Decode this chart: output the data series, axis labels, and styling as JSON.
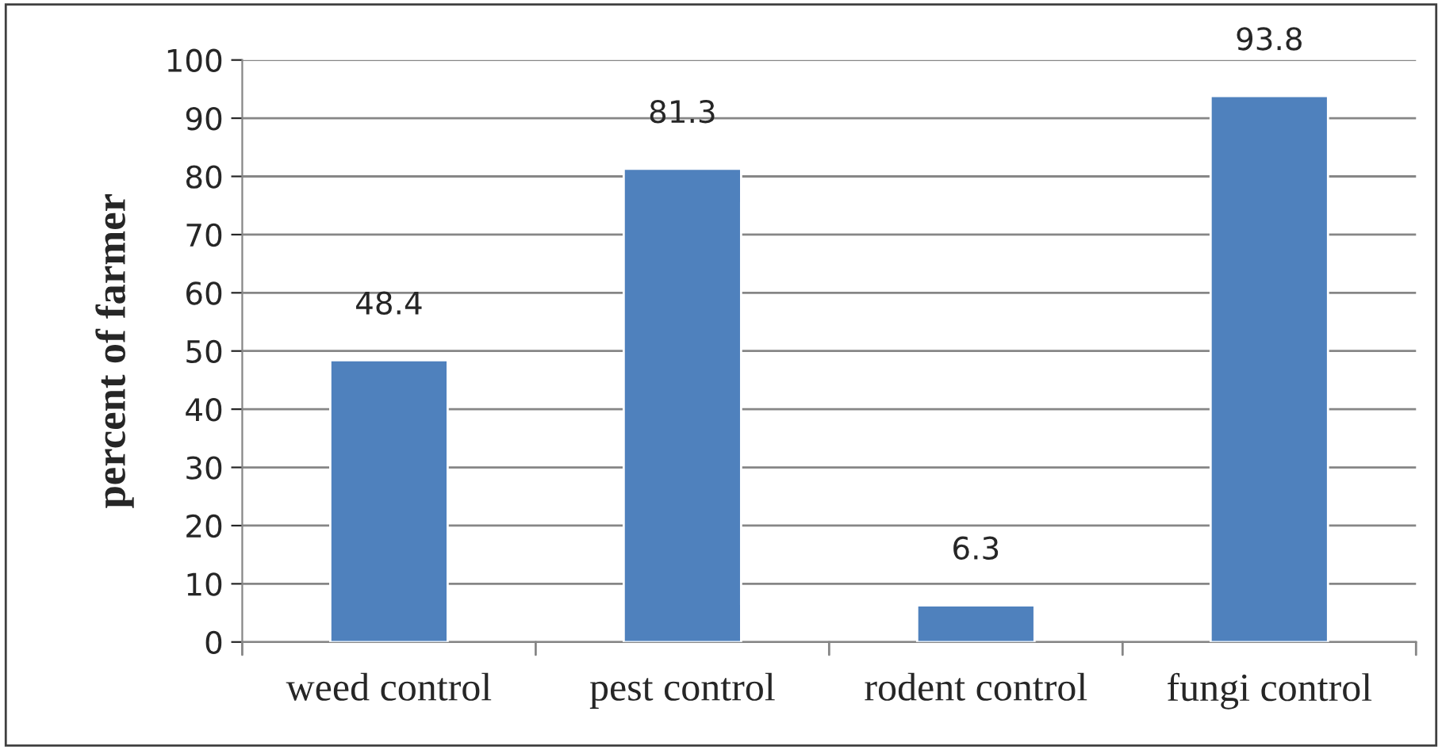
{
  "chart_data": {
    "type": "bar",
    "ylabel": "percent of farmer",
    "categories": [
      "weed control",
      "pest control",
      "rodent control",
      "fungi control"
    ],
    "values": [
      48.4,
      81.3,
      6.3,
      93.8
    ],
    "color": "#4f81bd",
    "ylim": [
      0,
      100
    ],
    "yticks": [
      0,
      10,
      20,
      30,
      40,
      50,
      60,
      70,
      80,
      90,
      100
    ],
    "grid": "y",
    "data_labels": true
  }
}
